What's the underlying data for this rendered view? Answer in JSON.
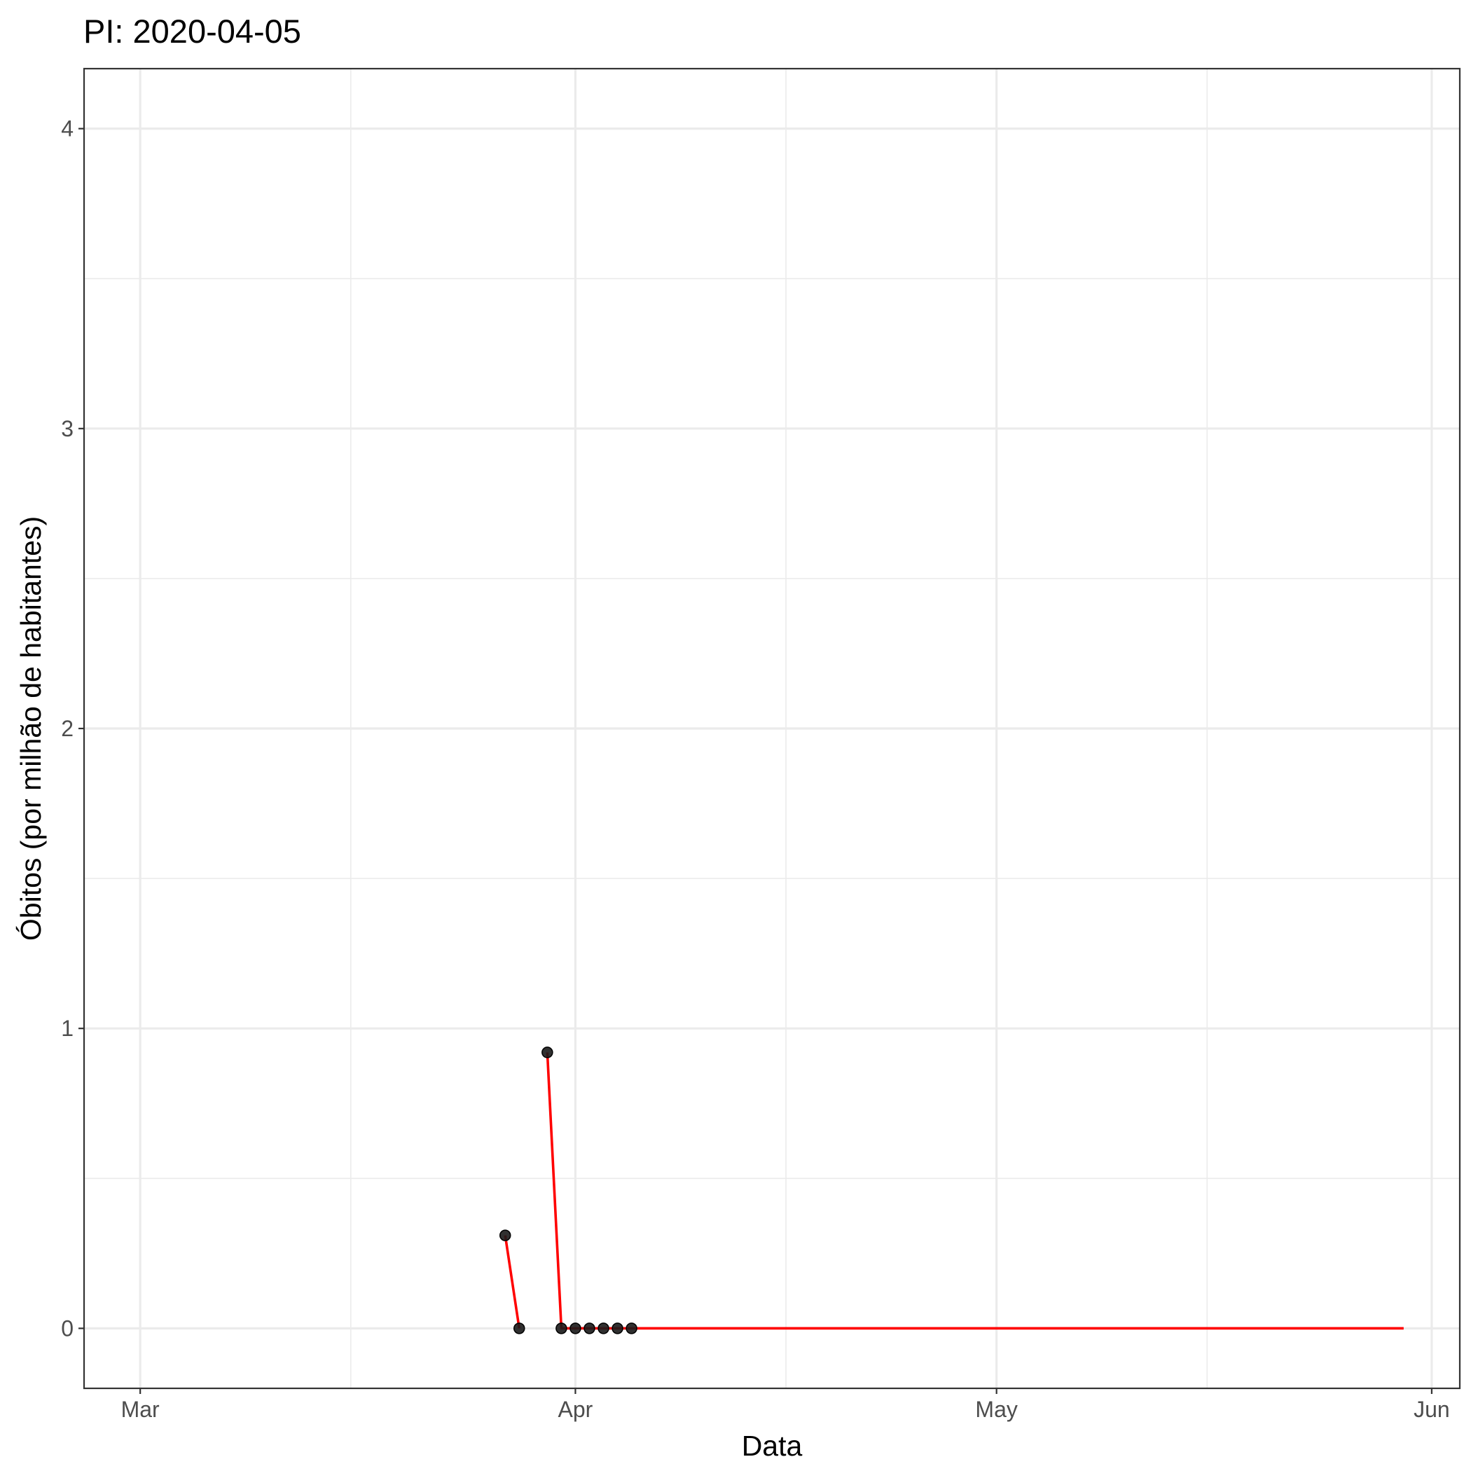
{
  "chart_data": {
    "type": "line",
    "title": "PI: 2020-04-05",
    "xlabel": "Data",
    "ylabel": "Óbitos (por milhão de habitantes)",
    "x_axis": {
      "type": "date",
      "range": [
        "2020-02-26",
        "2020-06-03"
      ],
      "ticks": [
        {
          "date": "2020-03-01",
          "label": "Mar"
        },
        {
          "date": "2020-04-01",
          "label": "Apr"
        },
        {
          "date": "2020-05-01",
          "label": "May"
        },
        {
          "date": "2020-06-01",
          "label": "Jun"
        }
      ],
      "minor_grid": [
        "2020-03-16",
        "2020-04-16",
        "2020-05-16"
      ]
    },
    "y_axis": {
      "range": [
        -0.2,
        4.2
      ],
      "ticks": [
        0,
        1,
        2,
        3,
        4
      ],
      "minor_grid": [
        0.5,
        1.5,
        2.5,
        3.5
      ]
    },
    "grid": true,
    "series": [
      {
        "kind": "line",
        "color": "#ff0000",
        "segments": [
          [
            {
              "x": "2020-03-27",
              "y": 0.31
            },
            {
              "x": "2020-03-28",
              "y": 0
            }
          ],
          [
            {
              "x": "2020-03-30",
              "y": 0.92
            },
            {
              "x": "2020-03-31",
              "y": 0
            },
            {
              "x": "2020-04-01",
              "y": 0
            },
            {
              "x": "2020-04-02",
              "y": 0
            },
            {
              "x": "2020-04-03",
              "y": 0
            },
            {
              "x": "2020-04-04",
              "y": 0
            },
            {
              "x": "2020-04-05",
              "y": 0
            },
            {
              "x": "2020-05-30",
              "y": 0
            }
          ]
        ]
      },
      {
        "kind": "points",
        "color": "#1a1a1a",
        "points": [
          {
            "x": "2020-03-27",
            "y": 0.31
          },
          {
            "x": "2020-03-28",
            "y": 0
          },
          {
            "x": "2020-03-30",
            "y": 0.92
          },
          {
            "x": "2020-03-31",
            "y": 0
          },
          {
            "x": "2020-04-01",
            "y": 0
          },
          {
            "x": "2020-04-02",
            "y": 0
          },
          {
            "x": "2020-04-03",
            "y": 0
          },
          {
            "x": "2020-04-04",
            "y": 0
          },
          {
            "x": "2020-04-05",
            "y": 0
          }
        ]
      }
    ]
  }
}
